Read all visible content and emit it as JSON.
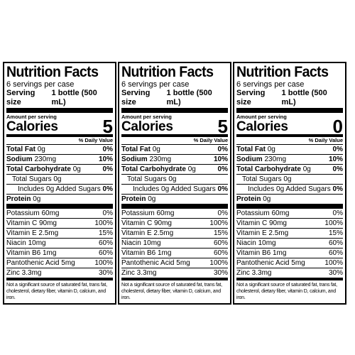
{
  "panels": [
    {
      "title": "Nutrition Facts",
      "servings": "6 servings per case",
      "serving_size_label": "Serving size",
      "serving_size_value": "1 bottle (500 mL)",
      "amount_per_serving": "Amount per serving",
      "calories_label": "Calories",
      "calories_value": "5",
      "dv_header": "% Daily Value",
      "total_fat_label": "Total Fat",
      "total_fat_amount": "0g",
      "total_fat_dv": "0%",
      "sodium_label": "Sodium",
      "sodium_amount": "230mg",
      "sodium_dv": "10%",
      "carb_label": "Total Carbohydrate",
      "carb_amount": "0g",
      "carb_dv": "0%",
      "sugars": "Total Sugars 0g",
      "added_sugars": "Includes 0g Added Sugars",
      "added_sugars_dv": "0%",
      "protein_label": "Protein",
      "protein_amount": "0g",
      "vitamins": [
        {
          "label": "Potassium 60mg",
          "dv": "0%"
        },
        {
          "label": "Vitamin C 90mg",
          "dv": "100%"
        },
        {
          "label": "Vitamin E 2.5mg",
          "dv": "15%"
        },
        {
          "label": "Niacin 10mg",
          "dv": "60%"
        },
        {
          "label": "Vitamin B6 1mg",
          "dv": "60%"
        },
        {
          "label": "Pantothenic Acid 5mg",
          "dv": "100%"
        },
        {
          "label": "Zinc 3.3mg",
          "dv": "30%"
        }
      ],
      "footnote": "Not a significant source of saturated fat, trans fat, cholesterol, dietary fiber, vitamin D, calcium, and iron."
    },
    {
      "title": "Nutrition Facts",
      "servings": "6 servings per case",
      "serving_size_label": "Serving size",
      "serving_size_value": "1 bottle (500 mL)",
      "amount_per_serving": "Amount per serving",
      "calories_label": "Calories",
      "calories_value": "5",
      "dv_header": "% Daily Value",
      "total_fat_label": "Total Fat",
      "total_fat_amount": "0g",
      "total_fat_dv": "0%",
      "sodium_label": "Sodium",
      "sodium_amount": "230mg",
      "sodium_dv": "10%",
      "carb_label": "Total Carbohydrate",
      "carb_amount": "0g",
      "carb_dv": "0%",
      "sugars": "Total Sugars 0g",
      "added_sugars": "Includes 0g Added Sugars",
      "added_sugars_dv": "0%",
      "protein_label": "Protein",
      "protein_amount": "0g",
      "vitamins": [
        {
          "label": "Potassium 60mg",
          "dv": "0%"
        },
        {
          "label": "Vitamin C 90mg",
          "dv": "100%"
        },
        {
          "label": "Vitamin E 2.5mg",
          "dv": "15%"
        },
        {
          "label": "Niacin 10mg",
          "dv": "60%"
        },
        {
          "label": "Vitamin B6 1mg",
          "dv": "60%"
        },
        {
          "label": "Pantothenic Acid 5mg",
          "dv": "100%"
        },
        {
          "label": "Zinc 3.3mg",
          "dv": "30%"
        }
      ],
      "footnote": "Not a significant source of saturated fat, trans fat, cholesterol, dietary fiber, vitamin D, calcium, and iron."
    },
    {
      "title": "Nutrition Facts",
      "servings": "6 servings per case",
      "serving_size_label": "Serving size",
      "serving_size_value": "1 bottle (500 mL)",
      "amount_per_serving": "Amount per serving",
      "calories_label": "Calories",
      "calories_value": "0",
      "dv_header": "% Daily Value",
      "total_fat_label": "Total Fat",
      "total_fat_amount": "0g",
      "total_fat_dv": "0%",
      "sodium_label": "Sodium",
      "sodium_amount": "230mg",
      "sodium_dv": "10%",
      "carb_label": "Total Carbohydrate",
      "carb_amount": "0g",
      "carb_dv": "0%",
      "sugars": "Total Sugars 0g",
      "added_sugars": "Includes 0g Added Sugars",
      "added_sugars_dv": "0%",
      "protein_label": "Protein",
      "protein_amount": "0g",
      "vitamins": [
        {
          "label": "Potassium 60mg",
          "dv": "0%"
        },
        {
          "label": "Vitamin C 90mg",
          "dv": "100%"
        },
        {
          "label": "Vitamin E 2.5mg",
          "dv": "15%"
        },
        {
          "label": "Niacin 10mg",
          "dv": "60%"
        },
        {
          "label": "Vitamin B6 1mg",
          "dv": "60%"
        },
        {
          "label": "Pantothenic Acid 5mg",
          "dv": "100%"
        },
        {
          "label": "Zinc 3.3mg",
          "dv": "30%"
        }
      ],
      "footnote": "Not a significant source of saturated fat, trans fat, cholesterol, dietary fiber, vitamin D, calcium, and iron."
    }
  ]
}
